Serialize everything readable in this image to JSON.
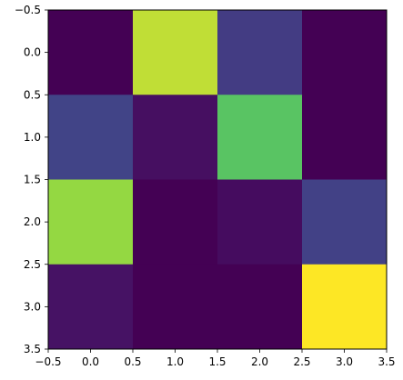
{
  "chart_data": {
    "type": "heatmap",
    "title": "",
    "xlabel": "",
    "ylabel": "",
    "xlim": [
      -0.5,
      3.5
    ],
    "ylim": [
      3.5,
      -0.5
    ],
    "y_inverted": true,
    "grid": false,
    "colormap": "viridis",
    "rows": 4,
    "cols": 4,
    "values": [
      [
        0.0,
        0.93,
        0.22,
        0.0
      ],
      [
        0.25,
        0.05,
        0.8,
        0.0
      ],
      [
        0.88,
        0.0,
        0.04,
        0.24
      ],
      [
        0.06,
        0.0,
        0.0,
        1.0
      ]
    ],
    "x_ticks": [
      -0.5,
      0.0,
      0.5,
      1.0,
      1.5,
      2.0,
      2.5,
      3.0,
      3.5
    ],
    "x_tick_labels": [
      "−0.5",
      "0.0",
      "0.5",
      "1.0",
      "1.5",
      "2.0",
      "2.5",
      "3.0",
      "3.5"
    ],
    "y_ticks": [
      -0.5,
      0.0,
      0.5,
      1.0,
      1.5,
      2.0,
      2.5,
      3.0,
      3.5
    ],
    "y_tick_labels": [
      "−0.5",
      "0.0",
      "0.5",
      "1.0",
      "1.5",
      "2.0",
      "2.5",
      "3.0",
      "3.5"
    ]
  }
}
